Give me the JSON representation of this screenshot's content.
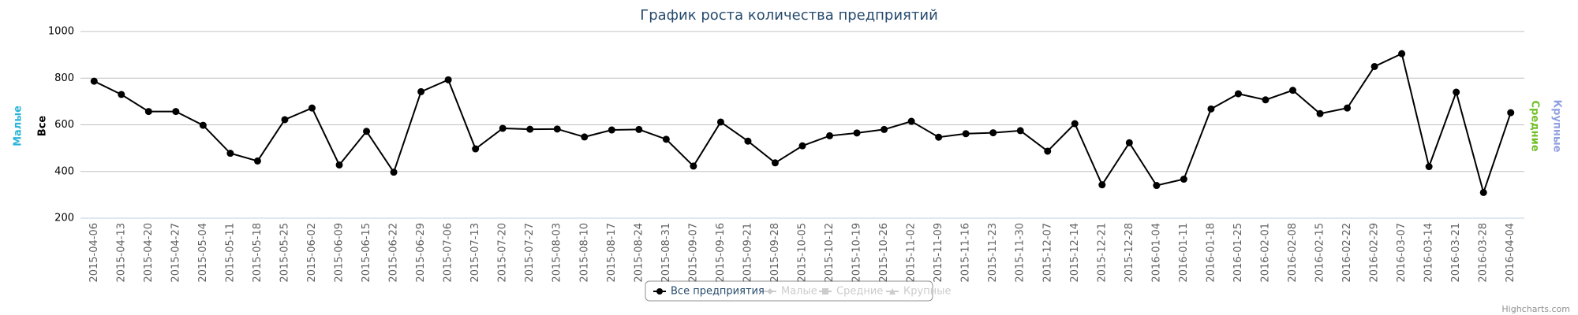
{
  "chart_data": {
    "type": "line",
    "title": "График роста количества предприятий",
    "credits": "Highcharts.com",
    "categories": [
      "2015-04-06",
      "2015-04-13",
      "2015-04-20",
      "2015-04-27",
      "2015-05-04",
      "2015-05-11",
      "2015-05-18",
      "2015-05-25",
      "2015-06-02",
      "2015-06-09",
      "2015-06-15",
      "2015-06-22",
      "2015-06-29",
      "2015-07-06",
      "2015-07-13",
      "2015-07-20",
      "2015-07-27",
      "2015-08-03",
      "2015-08-10",
      "2015-08-17",
      "2015-08-24",
      "2015-08-31",
      "2015-09-07",
      "2015-09-16",
      "2015-09-21",
      "2015-09-28",
      "2015-10-05",
      "2015-10-12",
      "2015-10-19",
      "2015-10-26",
      "2015-11-02",
      "2015-11-09",
      "2015-11-16",
      "2015-11-23",
      "2015-11-30",
      "2015-12-07",
      "2015-12-14",
      "2015-12-21",
      "2015-12-28",
      "2016-01-04",
      "2016-01-11",
      "2016-01-18",
      "2016-01-25",
      "2016-02-01",
      "2016-02-08",
      "2016-02-15",
      "2016-02-22",
      "2016-02-29",
      "2016-03-07",
      "2016-03-14",
      "2016-03-21",
      "2016-03-28",
      "2016-04-04"
    ],
    "series": [
      {
        "name": "Все предприятия",
        "color": "#000000",
        "marker": "circle",
        "visible": true,
        "values": [
          787,
          730,
          657,
          657,
          598,
          478,
          445,
          622,
          672,
          428,
          572,
          397,
          742,
          793,
          497,
          585,
          581,
          582,
          548,
          578,
          580,
          538,
          423,
          612,
          530,
          437,
          510,
          553,
          565,
          580,
          615,
          547,
          562,
          566,
          575,
          487,
          605,
          343,
          523,
          340,
          367,
          668,
          733,
          707,
          748,
          648,
          672,
          850,
          905,
          421,
          740,
          310,
          652
        ]
      },
      {
        "name": "Малые",
        "color": "#2bb5d8",
        "marker": "diamond",
        "visible": false
      },
      {
        "name": "Средние",
        "color": "#6fbf24",
        "marker": "square",
        "visible": false
      },
      {
        "name": "Крупные",
        "color": "#8f9fe0",
        "marker": "triangle",
        "visible": false
      }
    ],
    "axis_titles": [
      {
        "text": "Малые",
        "color": "#2bb5d8",
        "side": "left"
      },
      {
        "text": "Все",
        "color": "#000000",
        "side": "left"
      },
      {
        "text": "Средние",
        "color": "#6fbf24",
        "side": "right"
      },
      {
        "text": "Крупные",
        "color": "#8f9fe0",
        "side": "right"
      }
    ],
    "ylim": [
      200,
      1000
    ],
    "yticks": [
      200,
      400,
      600,
      800,
      1000
    ],
    "grid": true,
    "legend": "bottom",
    "hidden_color": "#cccccc"
  }
}
